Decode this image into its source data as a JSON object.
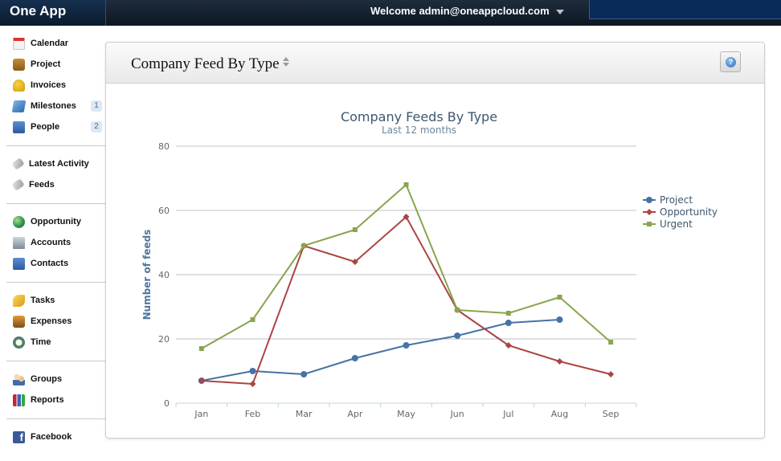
{
  "app": {
    "brand": "One App",
    "welcome": "Welcome admin@oneappcloud.com"
  },
  "sidebar": {
    "groups": [
      [
        {
          "label": "Calendar",
          "icon": "calendar-icon"
        },
        {
          "label": "Project",
          "icon": "project-icon"
        },
        {
          "label": "Invoices",
          "icon": "invoices-icon"
        },
        {
          "label": "Milestones",
          "icon": "milestones-icon",
          "badge": "1"
        },
        {
          "label": "People",
          "icon": "people-icon",
          "badge": "2"
        }
      ],
      [
        {
          "label": "Latest Activity",
          "icon": "activity-icon"
        },
        {
          "label": "Feeds",
          "icon": "feeds-icon"
        }
      ],
      [
        {
          "label": "Opportunity",
          "icon": "opportunity-icon"
        },
        {
          "label": "Accounts",
          "icon": "accounts-icon"
        },
        {
          "label": "Contacts",
          "icon": "contacts-icon"
        }
      ],
      [
        {
          "label": "Tasks",
          "icon": "tasks-icon"
        },
        {
          "label": "Expenses",
          "icon": "expenses-icon"
        },
        {
          "label": "Time",
          "icon": "time-icon"
        }
      ],
      [
        {
          "label": "Groups",
          "icon": "groups-icon"
        },
        {
          "label": "Reports",
          "icon": "reports-icon"
        }
      ],
      [
        {
          "label": "Facebook",
          "icon": "facebook-icon"
        }
      ]
    ]
  },
  "panel": {
    "title": "Company Feed By Type"
  },
  "chart_data": {
    "type": "line",
    "title": "Company Feeds By Type",
    "subtitle": "Last 12 months",
    "xlabel": "",
    "ylabel": "Number of feeds",
    "categories": [
      "Jan",
      "Feb",
      "Mar",
      "Apr",
      "May",
      "Jun",
      "Jul",
      "Aug",
      "Sep"
    ],
    "ylim": [
      0,
      80
    ],
    "yticks": [
      0,
      20,
      40,
      60,
      80
    ],
    "grid": true,
    "legend": "right",
    "series": [
      {
        "name": "Project",
        "color": "#4572a7",
        "marker": "circle",
        "values": [
          7,
          10,
          9,
          14,
          18,
          21,
          25,
          26,
          null
        ]
      },
      {
        "name": "Opportunity",
        "color": "#aa4643",
        "marker": "diamond",
        "values": [
          7,
          6,
          49,
          44,
          58,
          29,
          18,
          13,
          9
        ]
      },
      {
        "name": "Urgent",
        "color": "#89a54e",
        "marker": "square",
        "values": [
          17,
          26,
          49,
          54,
          68,
          29,
          28,
          33,
          19
        ]
      }
    ]
  }
}
